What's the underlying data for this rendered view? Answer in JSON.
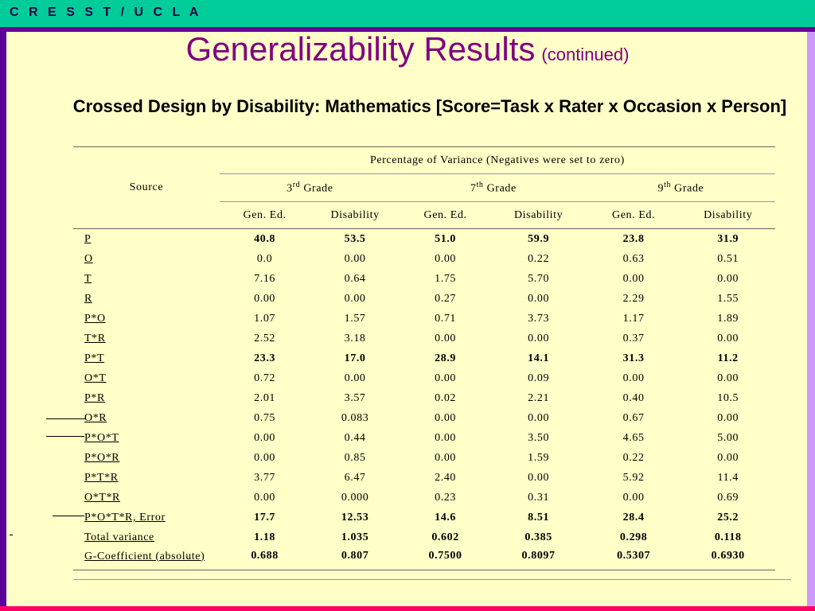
{
  "header": {
    "brand": "C R E S S T / U C L A"
  },
  "title": {
    "main": "Generalizability Results",
    "continued": "(continued)"
  },
  "subtitle": "Crossed Design by Disability: Mathematics [Score=Task x Rater x Occasion x Person]",
  "table": {
    "source_label": "Source",
    "percentage_header": "Percentage of Variance (Negatives were set to zero)",
    "grades": [
      {
        "num": "3",
        "sup": "rd",
        "label": "Grade"
      },
      {
        "num": "7",
        "sup": "th",
        "label": "Grade"
      },
      {
        "num": "9",
        "sup": "th",
        "label": "Grade"
      }
    ],
    "columns": [
      "Gen. Ed.",
      "Disability",
      "Gen. Ed.",
      "Disability",
      "Gen. Ed.",
      "Disability"
    ],
    "rows": [
      {
        "source": "P",
        "values": [
          "40.8",
          "53.5",
          "51.0",
          "59.9",
          "23.8",
          "31.9"
        ],
        "bold": true
      },
      {
        "source": "O",
        "values": [
          "0.0",
          "0.00",
          "0.00",
          "0.22",
          "0.63",
          "0.51"
        ],
        "bold": false
      },
      {
        "source": "T",
        "values": [
          "7.16",
          "0.64",
          "1.75",
          "5.70",
          "0.00",
          "0.00"
        ],
        "bold": false
      },
      {
        "source": "R",
        "values": [
          "0.00",
          "0.00",
          "0.27",
          "0.00",
          "2.29",
          "1.55"
        ],
        "bold": false
      },
      {
        "source": "P*O",
        "values": [
          "1.07",
          "1.57",
          "0.71",
          "3.73",
          "1.17",
          "1.89"
        ],
        "bold": false
      },
      {
        "source": "T*R",
        "values": [
          "2.52",
          "3.18",
          "0.00",
          "0.00",
          "0.37",
          "0.00"
        ],
        "bold": false
      },
      {
        "source": "P*T",
        "values": [
          "23.3",
          "17.0",
          "28.9",
          "14.1",
          "31.3",
          "11.2"
        ],
        "bold": true
      },
      {
        "source": "O*T",
        "values": [
          "0.72",
          "0.00",
          "0.00",
          "0.09",
          "0.00",
          "0.00"
        ],
        "bold": false
      },
      {
        "source": "P*R",
        "values": [
          "2.01",
          "3.57",
          "0.02",
          "2.21",
          "0.40",
          "10.5"
        ],
        "bold": false
      },
      {
        "source": "O*R",
        "values": [
          "0.75",
          "0.083",
          "0.00",
          "0.00",
          "0.67",
          "0.00"
        ],
        "bold": false
      },
      {
        "source": "P*O*T",
        "values": [
          "0.00",
          "0.44",
          "0.00",
          "3.50",
          "4.65",
          "5.00"
        ],
        "bold": false
      },
      {
        "source": "P*O*R",
        "values": [
          "0.00",
          "0.85",
          "0.00",
          "1.59",
          "0.22",
          "0.00"
        ],
        "bold": false
      },
      {
        "source": "P*T*R",
        "values": [
          "3.77",
          "6.47",
          "2.40",
          "0.00",
          "5.92",
          "11.4"
        ],
        "bold": false
      },
      {
        "source": "O*T*R",
        "values": [
          "0.00",
          "0.000",
          "0.23",
          "0.31",
          "0.00",
          "0.69"
        ],
        "bold": false
      },
      {
        "source": "P*O*T*R, Error",
        "values": [
          "17.7",
          "12.53",
          "14.6",
          "8.51",
          "28.4",
          "25.2"
        ],
        "bold": true
      },
      {
        "source": "Total variance",
        "values": [
          "1.18",
          "1.035",
          "0.602",
          "0.385",
          "0.298",
          "0.118"
        ],
        "bold": true
      },
      {
        "source": "G-Coefficient (absolute)",
        "values": [
          "0.688",
          "0.807",
          "0.7500",
          "0.8097",
          "0.5307",
          "0.6930"
        ],
        "bold": true
      }
    ]
  }
}
